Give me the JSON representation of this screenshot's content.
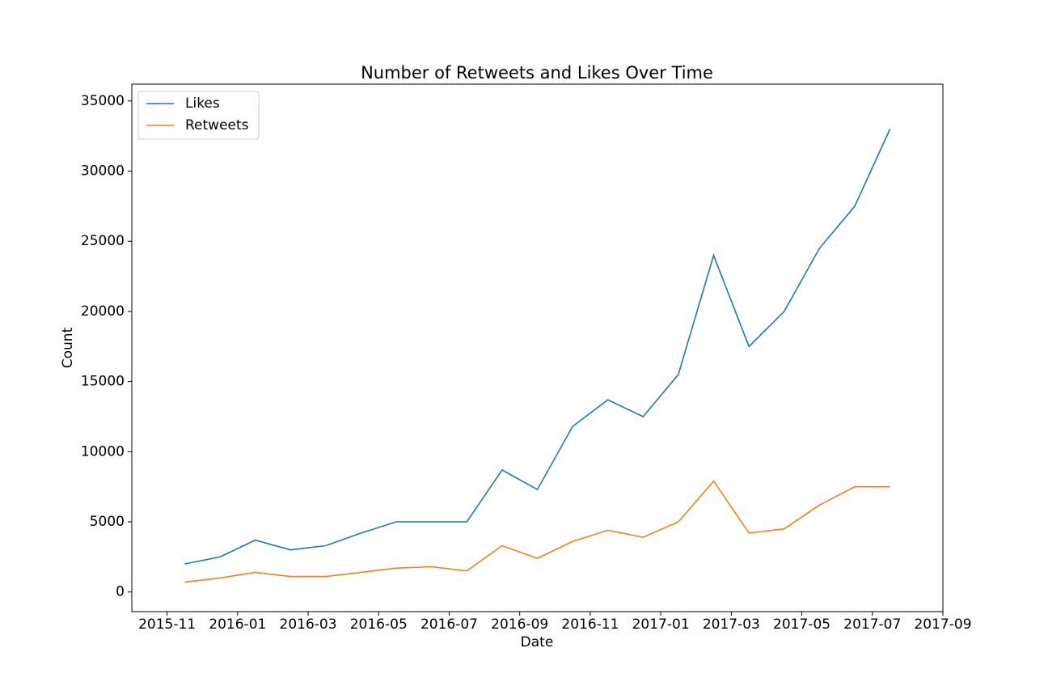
{
  "chart_data": {
    "type": "line",
    "title": "Number of Retweets and Likes Over Time",
    "x_label": "Date",
    "y_label": "Count",
    "x": [
      "2015-11",
      "2015-12",
      "2016-01",
      "2016-02",
      "2016-03",
      "2016-04",
      "2016-05",
      "2016-06",
      "2016-07",
      "2016-08",
      "2016-09",
      "2016-10",
      "2016-11",
      "2016-12",
      "2017-01",
      "2017-02",
      "2017-03",
      "2017-04",
      "2017-05",
      "2017-06",
      "2017-07"
    ],
    "series": [
      {
        "name": "Likes",
        "color": "#1f77b4",
        "values": [
          2000,
          2500,
          3700,
          3000,
          3300,
          4200,
          5000,
          5000,
          5000,
          8700,
          7300,
          11800,
          13700,
          12500,
          15500,
          24000,
          17500,
          20000,
          24500,
          27500,
          33000
        ]
      },
      {
        "name": "Retweets",
        "color": "#ff7f0e",
        "values": [
          700,
          1000,
          1400,
          1100,
          1100,
          1400,
          1700,
          1800,
          1500,
          3300,
          2400,
          3600,
          4400,
          3900,
          5000,
          7900,
          4200,
          4500,
          6200,
          7500,
          7500
        ]
      }
    ],
    "xlim": [
      "2015-10",
      "2017-09"
    ],
    "xticks": [
      "2015-11",
      "2016-01",
      "2016-03",
      "2016-05",
      "2016-07",
      "2016-09",
      "2016-11",
      "2017-01",
      "2017-03",
      "2017-05",
      "2017-07",
      "2017-09"
    ],
    "ylim": [
      -1400,
      36200
    ],
    "yticks": [
      0,
      5000,
      10000,
      15000,
      20000,
      25000,
      30000,
      35000
    ],
    "grid": false,
    "legend": "upper left"
  }
}
